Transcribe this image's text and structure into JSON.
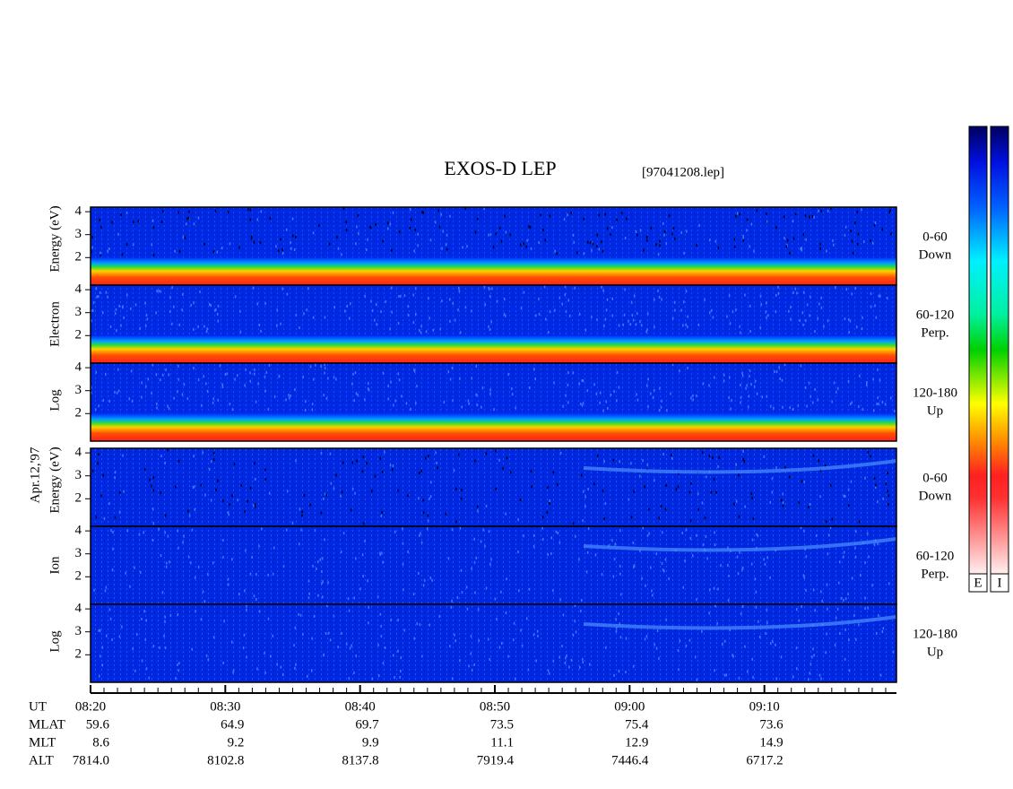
{
  "chart_data": {
    "type": "spectrogram",
    "title": "EXOS-D LEP",
    "subtitle": "[97041208.lep]",
    "date_label": "Apr.12,'97",
    "ylim": [
      0.8,
      4.2
    ],
    "yticks": [
      2,
      3,
      4
    ],
    "xlim": [
      500,
      560
    ],
    "xticks": [
      {
        "value": 500,
        "label": "08:20"
      },
      {
        "value": 510,
        "label": "08:30"
      },
      {
        "value": 520,
        "label": "08:40"
      },
      {
        "value": 530,
        "label": "08:50"
      },
      {
        "value": 540,
        "label": "09:00"
      },
      {
        "value": 550,
        "label": "09:10"
      }
    ],
    "groups": [
      {
        "name": "Electron",
        "ylabel": [
          "Log",
          "Electron",
          "Energy (eV)"
        ],
        "panels": [
          {
            "pitch_angle": "0-60",
            "direction": "Down"
          },
          {
            "pitch_angle": "60-120",
            "direction": "Perp."
          },
          {
            "pitch_angle": "120-180",
            "direction": "Up"
          }
        ]
      },
      {
        "name": "Ion",
        "ylabel": [
          "Log",
          "Ion",
          "Energy (eV)"
        ],
        "panels": [
          {
            "pitch_angle": "0-60",
            "direction": "Down"
          },
          {
            "pitch_angle": "60-120",
            "direction": "Perp."
          },
          {
            "pitch_angle": "120-180",
            "direction": "Up"
          }
        ]
      }
    ],
    "ephemeris": [
      {
        "name": "UT"
      },
      {
        "name": "MLAT",
        "values": [
          "59.6",
          "64.9",
          "69.7",
          "73.5",
          "75.4",
          "73.6"
        ]
      },
      {
        "name": "MLT",
        "values": [
          "8.6",
          "9.2",
          "9.9",
          "11.1",
          "12.9",
          "14.9"
        ]
      },
      {
        "name": "ALT",
        "values": [
          "7814.0",
          "8102.8",
          "8137.8",
          "7919.4",
          "7446.4",
          "6717.2"
        ]
      }
    ],
    "colorbars": [
      "E",
      "I"
    ]
  }
}
